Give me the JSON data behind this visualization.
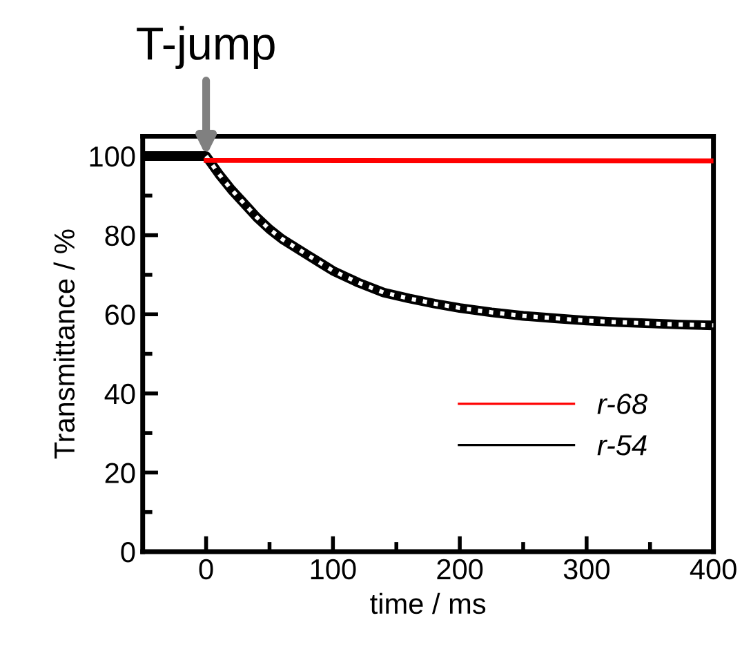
{
  "chart_data": {
    "type": "line",
    "xlabel": "time / ms",
    "ylabel": "Transmittance / %",
    "annotations": [
      {
        "text": "T-jump",
        "x": 0,
        "y": 100
      }
    ],
    "xlim": [
      -50,
      400
    ],
    "ylim": [
      0,
      105
    ],
    "xticks": [
      0,
      100,
      200,
      300,
      400,
      {
        "value": -50,
        "label": null
      },
      {
        "value": 50,
        "label": null
      },
      {
        "value": 150,
        "label": null
      },
      {
        "value": 250,
        "label": null
      },
      {
        "value": 350,
        "label": null
      }
    ],
    "yticks": [
      0,
      20,
      40,
      60,
      80,
      100,
      {
        "value": 10,
        "label": null
      },
      {
        "value": 30,
        "label": null
      },
      {
        "value": 50,
        "label": null
      },
      {
        "value": 70,
        "label": null
      },
      {
        "value": 90,
        "label": null
      }
    ],
    "legend": "right",
    "grid": false,
    "marker": "none",
    "series": [
      {
        "name": "r-54",
        "color": "#000000",
        "line_style": "solid",
        "x": [
          -50,
          -25,
          0,
          10,
          20,
          30,
          40,
          50,
          60,
          70,
          80,
          90,
          100,
          120,
          140,
          160,
          180,
          200,
          225,
          250,
          275,
          300,
          325,
          350,
          375,
          400
        ],
        "values": [
          100,
          100,
          100,
          95.5,
          91.5,
          88,
          84.5,
          81.5,
          79,
          77,
          75,
          73,
          71,
          68,
          65.5,
          64,
          62.7,
          61.6,
          60.5,
          59.6,
          59,
          58.4,
          58,
          57.7,
          57.4,
          57.2
        ]
      },
      {
        "color": "#ffffff",
        "line_style": "dotted",
        "x": [
          0,
          10,
          20,
          30,
          40,
          50,
          60,
          70,
          80,
          90,
          100,
          120,
          140,
          160,
          180,
          200,
          225,
          250,
          275,
          300,
          325,
          350,
          375,
          400
        ],
        "values": [
          100,
          95.5,
          91.5,
          88,
          84.5,
          81.5,
          79,
          77,
          75,
          73,
          71,
          68,
          65.5,
          64,
          62.7,
          61.6,
          60.5,
          59.6,
          59,
          58.4,
          58,
          57.7,
          57.4,
          57.2
        ]
      },
      {
        "name": "r-68",
        "color": "#ff0000",
        "line_style": "solid",
        "x": [
          0,
          400
        ],
        "values": [
          98.9,
          98.8
        ]
      }
    ]
  }
}
